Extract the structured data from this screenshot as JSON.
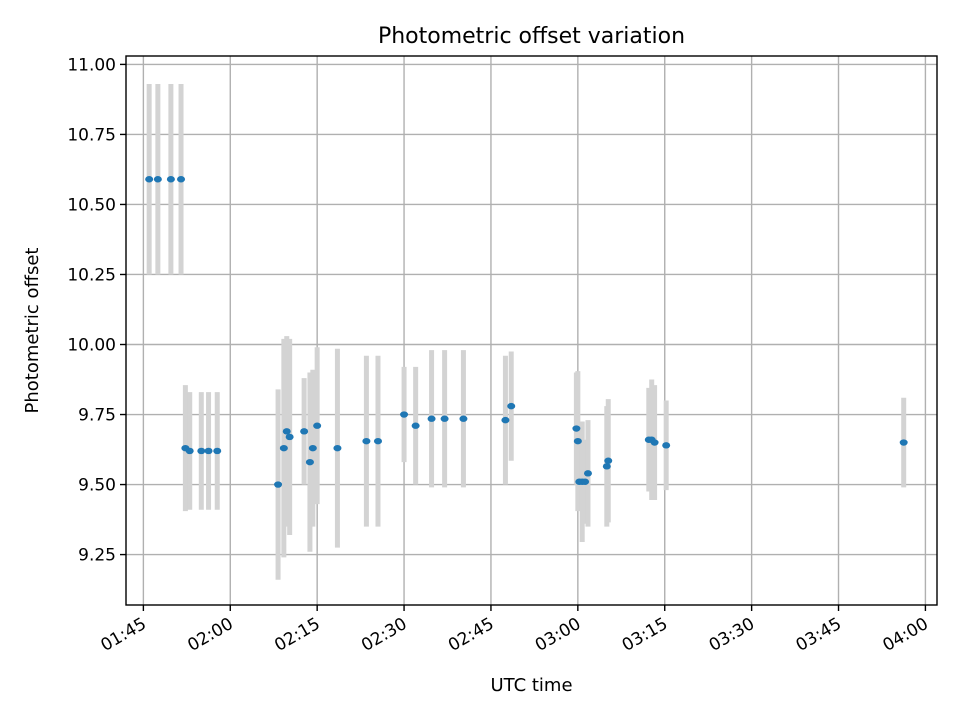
{
  "chart_data": {
    "type": "scatter",
    "title": "Photometric offset variation",
    "xlabel": "UTC time",
    "ylabel": "Photometric offset",
    "xlim": [
      "01:42",
      "04:02"
    ],
    "ylim": [
      9.07,
      11.03
    ],
    "x_ticks": [
      "01:45",
      "02:00",
      "02:15",
      "02:30",
      "02:45",
      "03:00",
      "03:15",
      "03:30",
      "03:45",
      "04:00"
    ],
    "y_ticks": [
      "9.25",
      "9.50",
      "9.75",
      "10.00",
      "10.25",
      "10.50",
      "10.75",
      "11.00"
    ],
    "grid": true,
    "point_color": "#1f77b4",
    "errorbar_color": "#d3d3d3",
    "points": [
      {
        "x": "01:46:00",
        "y": 10.59,
        "err": 0.34
      },
      {
        "x": "01:47:30",
        "y": 10.59,
        "err": 0.34
      },
      {
        "x": "01:49:45",
        "y": 10.59,
        "err": 0.34
      },
      {
        "x": "01:51:30",
        "y": 10.59,
        "err": 0.34
      },
      {
        "x": "01:52:15",
        "y": 9.63,
        "err": 0.225
      },
      {
        "x": "01:53:00",
        "y": 9.62,
        "err": 0.21
      },
      {
        "x": "01:55:00",
        "y": 9.62,
        "err": 0.21
      },
      {
        "x": "01:56:15",
        "y": 9.62,
        "err": 0.21
      },
      {
        "x": "01:57:45",
        "y": 9.62,
        "err": 0.21
      },
      {
        "x": "02:08:15",
        "y": 9.5,
        "err": 0.34
      },
      {
        "x": "02:09:15",
        "y": 9.63,
        "err": 0.39
      },
      {
        "x": "02:09:45",
        "y": 9.69,
        "err": 0.34
      },
      {
        "x": "02:10:15",
        "y": 9.67,
        "err": 0.35
      },
      {
        "x": "02:12:45",
        "y": 9.69,
        "err": 0.19
      },
      {
        "x": "02:13:45",
        "y": 9.58,
        "err": 0.32
      },
      {
        "x": "02:14:15",
        "y": 9.63,
        "err": 0.28
      },
      {
        "x": "02:15:00",
        "y": 9.71,
        "err": 0.28
      },
      {
        "x": "02:18:30",
        "y": 9.63,
        "err": 0.355
      },
      {
        "x": "02:23:30",
        "y": 9.655,
        "err": 0.305
      },
      {
        "x": "02:25:30",
        "y": 9.655,
        "err": 0.305
      },
      {
        "x": "02:30:00",
        "y": 9.75,
        "err": 0.17
      },
      {
        "x": "02:32:00",
        "y": 9.71,
        "err": 0.21
      },
      {
        "x": "02:34:45",
        "y": 9.735,
        "err": 0.245
      },
      {
        "x": "02:37:00",
        "y": 9.735,
        "err": 0.245
      },
      {
        "x": "02:40:15",
        "y": 9.735,
        "err": 0.245
      },
      {
        "x": "02:47:30",
        "y": 9.73,
        "err": 0.23
      },
      {
        "x": "02:48:30",
        "y": 9.78,
        "err": 0.195
      },
      {
        "x": "02:59:45",
        "y": 9.7,
        "err": 0.2
      },
      {
        "x": "03:00:00",
        "y": 9.655,
        "err": 0.25
      },
      {
        "x": "03:00:15",
        "y": 9.51,
        "err": 0.1
      },
      {
        "x": "03:00:45",
        "y": 9.51,
        "err": 0.215
      },
      {
        "x": "03:01:15",
        "y": 9.51,
        "err": 0.15
      },
      {
        "x": "03:01:45",
        "y": 9.54,
        "err": 0.19
      },
      {
        "x": "03:05:00",
        "y": 9.565,
        "err": 0.215
      },
      {
        "x": "03:05:15",
        "y": 9.585,
        "err": 0.22
      },
      {
        "x": "03:12:15",
        "y": 9.66,
        "err": 0.185
      },
      {
        "x": "03:12:45",
        "y": 9.66,
        "err": 0.215
      },
      {
        "x": "03:13:15",
        "y": 9.65,
        "err": 0.205
      },
      {
        "x": "03:15:15",
        "y": 9.64,
        "err": 0.16
      },
      {
        "x": "03:56:15",
        "y": 9.65,
        "err": 0.16
      }
    ]
  }
}
